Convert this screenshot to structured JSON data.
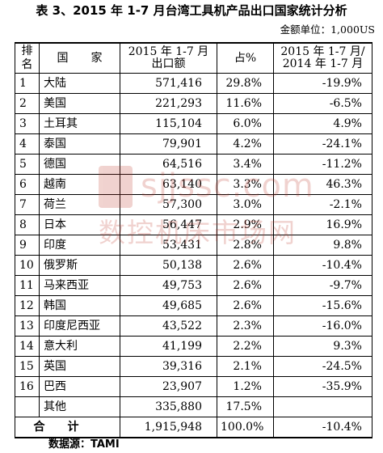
{
  "title": "表 3、2015 年 1-7 月台湾工具机产品出口国家统计分析",
  "unit": "金额单位：1,000US",
  "headers": {
    "rank": "排名",
    "country": "国　　家",
    "export": "2015 年 1-7 月\n出口额",
    "share": "占%",
    "growth": "2015 年 1-7 月/\n2014 年 1-7 月"
  },
  "rows": [
    {
      "rank": "1",
      "country": "大陆",
      "value": "571,416",
      "share": "29.8%",
      "growth": "-19.9%"
    },
    {
      "rank": "2",
      "country": "美国",
      "value": "221,293",
      "share": "11.6%",
      "growth": "-6.5%"
    },
    {
      "rank": "3",
      "country": "土耳其",
      "value": "115,104",
      "share": "6.0%",
      "growth": "4.9%"
    },
    {
      "rank": "4",
      "country": "泰国",
      "value": "79,901",
      "share": "4.2%",
      "growth": "-24.1%"
    },
    {
      "rank": "5",
      "country": "德国",
      "value": "64,516",
      "share": "3.4%",
      "growth": "-11.2%"
    },
    {
      "rank": "6",
      "country": "越南",
      "value": "63,140",
      "share": "3.3%",
      "growth": "46.3%"
    },
    {
      "rank": "7",
      "country": "荷兰",
      "value": "57,300",
      "share": "3.0%",
      "growth": "-2.1%"
    },
    {
      "rank": "8",
      "country": "日本",
      "value": "56,447",
      "share": "2.9%",
      "growth": "16.9%"
    },
    {
      "rank": "9",
      "country": "印度",
      "value": "53,431",
      "share": "2.8%",
      "growth": "9.8%"
    },
    {
      "rank": "10",
      "country": "俄罗斯",
      "value": "50,138",
      "share": "2.6%",
      "growth": "-10.4%"
    },
    {
      "rank": "11",
      "country": "马来西亚",
      "value": "49,753",
      "share": "2.6%",
      "growth": "-9.7%"
    },
    {
      "rank": "12",
      "country": "韩国",
      "value": "49,685",
      "share": "2.6%",
      "growth": "-15.6%"
    },
    {
      "rank": "13",
      "country": "印度尼西亚",
      "value": "43,522",
      "share": "2.3%",
      "growth": "-16.0%"
    },
    {
      "rank": "14",
      "country": "意大利",
      "value": "41,199",
      "share": "2.2%",
      "growth": "9.3%"
    },
    {
      "rank": "15",
      "country": "英国",
      "value": "39,316",
      "share": "2.1%",
      "growth": "-24.5%"
    },
    {
      "rank": "16",
      "country": "巴西",
      "value": "23,907",
      "share": "1.2%",
      "growth": "-35.9%"
    },
    {
      "rank": "",
      "country": "其他",
      "value": "335,880",
      "share": "17.5%",
      "growth": ""
    }
  ],
  "total": {
    "label": "合计",
    "value": "1,915,948",
    "share": "100.0%",
    "growth": "-10.4%"
  },
  "source": "数据源：TAMI",
  "watermark": {
    "line1": "sjjssc.com",
    "line2": "数控机床市场网",
    "color": "#c0392b"
  }
}
